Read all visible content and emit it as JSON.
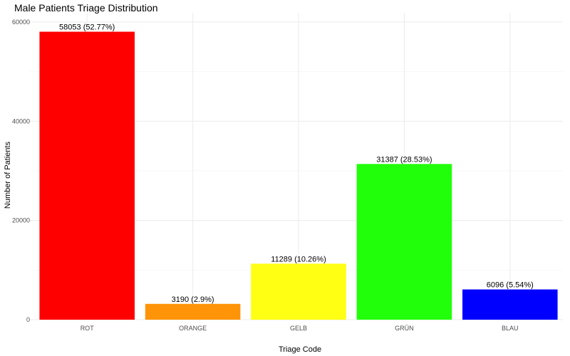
{
  "chart_data": {
    "type": "bar",
    "title": "Male Patients Triage Distribution",
    "xlabel": "Triage Code",
    "ylabel": "Number of Patients",
    "categories": [
      "ROT",
      "ORANGE",
      "GELB",
      "GRÜN",
      "BLAU"
    ],
    "values": [
      58053,
      3190,
      11289,
      31387,
      6096
    ],
    "data_labels": [
      "58053 (52.77%)",
      "3190 (2.9%)",
      "11289 (10.26%)",
      "31387 (28.53%)",
      "6096 (5.54%)"
    ],
    "colors": [
      "#ff0000",
      "#ff9408",
      "#ffff14",
      "#21ff0a",
      "#0000ff"
    ],
    "ylim": [
      0,
      61000
    ],
    "yticks": [
      0,
      20000,
      40000,
      60000
    ],
    "ytick_labels": [
      "0",
      "20000",
      "40000",
      "60000"
    ],
    "grid": true,
    "legend": "none"
  }
}
